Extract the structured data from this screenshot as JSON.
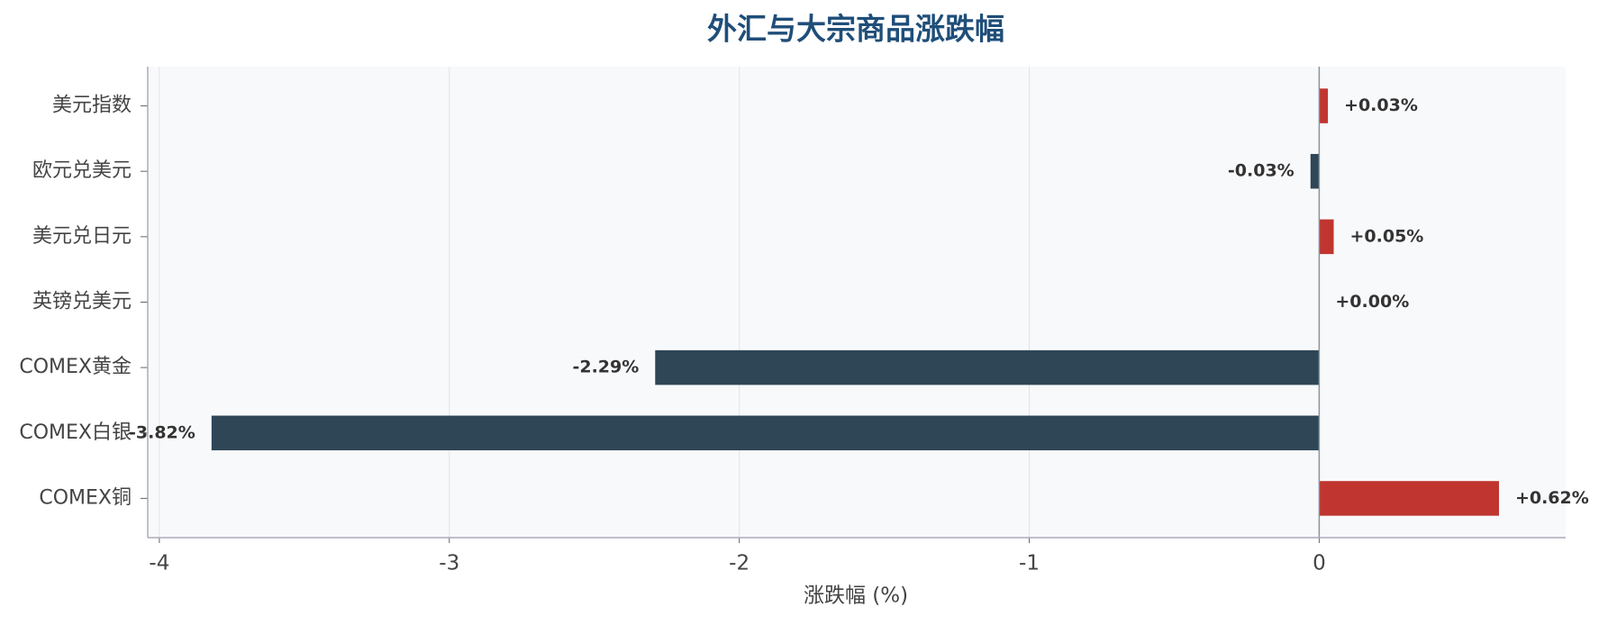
{
  "chart_data": {
    "type": "barh",
    "title": "外汇与大宗商品涨跌幅",
    "xlabel": "涨跌幅 (%)",
    "categories": [
      "美元指数",
      "欧元兑美元",
      "美元兑日元",
      "英镑兑美元",
      "COMEX黄金",
      "COMEX白银",
      "COMEX铜"
    ],
    "values": [
      0.03,
      -0.03,
      0.05,
      0.0,
      -2.29,
      -3.82,
      0.62
    ],
    "value_labels": [
      "+0.03%",
      "-0.03%",
      "+0.05%",
      "+0.00%",
      "-2.29%",
      "-3.82%",
      "+0.62%"
    ],
    "positive_color": "#c0352f",
    "negative_color": "#2f4657",
    "xlim": [
      -4.04,
      0.85
    ],
    "xticks": [
      -4,
      -3,
      -2,
      -1,
      0
    ],
    "grid": true
  }
}
